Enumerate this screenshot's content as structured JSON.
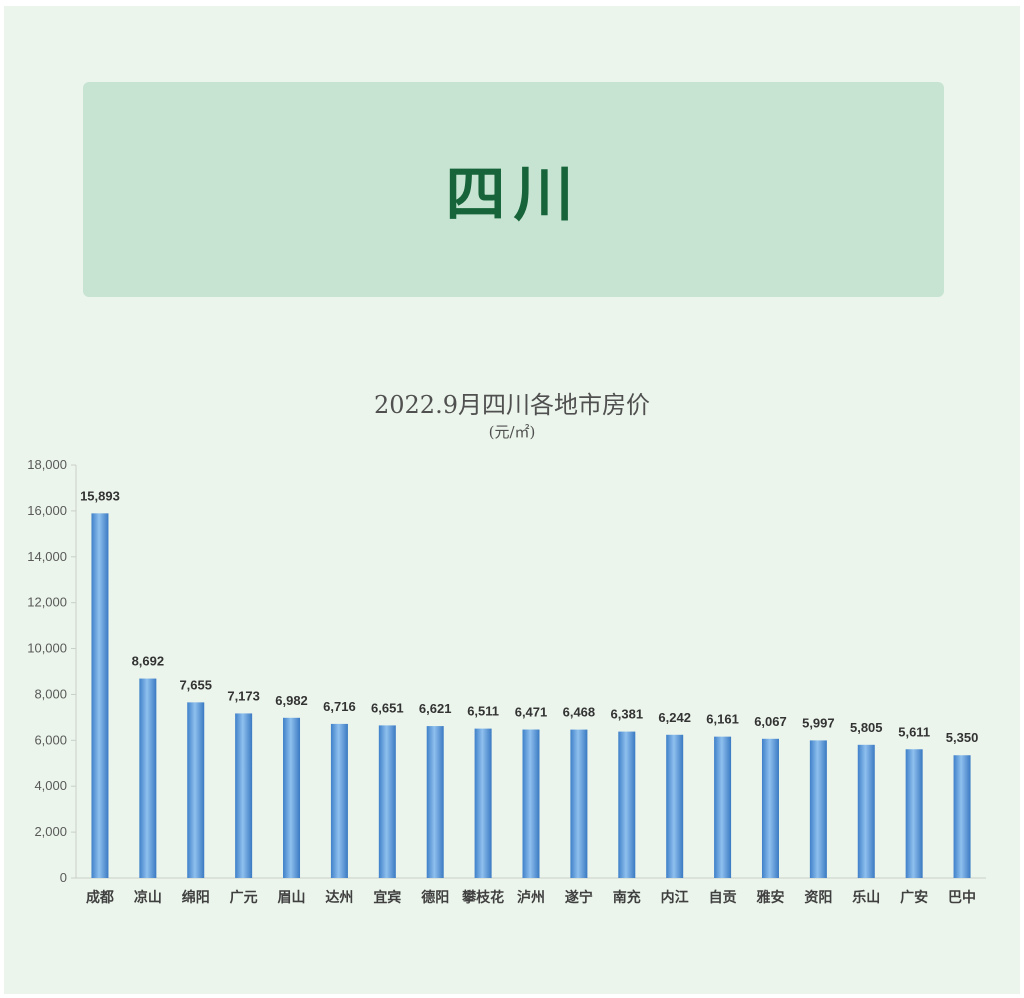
{
  "banner": {
    "title": "四川"
  },
  "chart_data": {
    "type": "bar",
    "title": "2022.9月四川各地市房价",
    "subtitle": "(元/㎡)",
    "xlabel": "",
    "ylabel": "",
    "ylim": [
      0,
      18000
    ],
    "yticks": [
      "0",
      "2,000",
      "4,000",
      "6,000",
      "8,000",
      "10,000",
      "12,000",
      "14,000",
      "16,000",
      "18,000"
    ],
    "categories": [
      "成都",
      "凉山",
      "绵阳",
      "广元",
      "眉山",
      "达州",
      "宜宾",
      "德阳",
      "攀枝花",
      "泸州",
      "遂宁",
      "南充",
      "内江",
      "自贡",
      "雅安",
      "资阳",
      "乐山",
      "广安",
      "巴中"
    ],
    "values": [
      15893,
      8692,
      7655,
      7173,
      6982,
      6716,
      6651,
      6621,
      6511,
      6471,
      6468,
      6381,
      6242,
      6161,
      6067,
      5997,
      5805,
      5611,
      5350
    ],
    "value_labels": [
      "15,893",
      "8,692",
      "7,655",
      "7,173",
      "6,982",
      "6,716",
      "6,651",
      "6,621",
      "6,511",
      "6,471",
      "6,468",
      "6,381",
      "6,242",
      "6,161",
      "6,067",
      "5,997",
      "5,805",
      "5,611",
      "5,350"
    ],
    "bar_color": "#4a8fd6",
    "grid": false,
    "legend": "none"
  },
  "colors": {
    "page_background": "#ebf5ec",
    "banner_background": "#c7e4d3",
    "banner_text": "#17643a"
  }
}
